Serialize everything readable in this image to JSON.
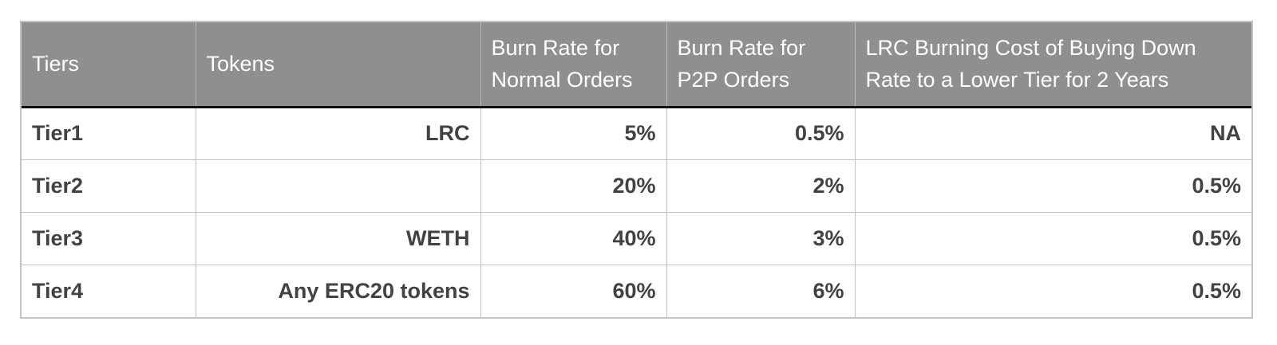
{
  "table": {
    "headers": [
      "Tiers",
      "Tokens",
      "Burn Rate for Normal Orders",
      "Burn  Rate for P2P Orders",
      "LRC Burning Cost of Buying Down Rate to a Lower Tier for 2 Years"
    ],
    "rows": [
      [
        "Tier1",
        "LRC",
        "5%",
        "0.5%",
        "NA"
      ],
      [
        "Tier2",
        "",
        "20%",
        "2%",
        "0.5%"
      ],
      [
        "Tier3",
        "WETH",
        "40%",
        "3%",
        "0.5%"
      ],
      [
        "Tier4",
        "Any ERC20 tokens",
        "60%",
        "6%",
        "0.5%"
      ]
    ]
  },
  "colors": {
    "header_bg": "#8f8f8f",
    "header_text": "#ffffff",
    "cell_text": "#424242",
    "grid": "#c4c4c4"
  }
}
